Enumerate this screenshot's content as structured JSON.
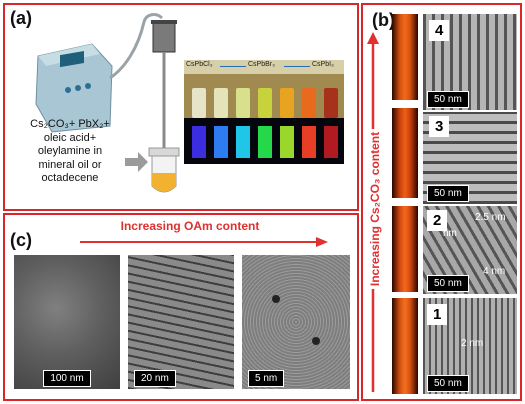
{
  "panel_a": {
    "label": "(a)",
    "formula_lines": [
      "Cs₂CO₃+ PbX₂+",
      "oleic acid+",
      "oleylamine in",
      "mineral oil or",
      "octadecene"
    ],
    "vial_labels": {
      "left": "CsPbCl₃",
      "middle": "CsPbBr₃",
      "right": "CsPbI₃"
    }
  },
  "panel_b": {
    "label": "(b)",
    "side_text": "Increasing Cs₂CO₃ content",
    "images": [
      {
        "index": "4",
        "scale": "50 nm",
        "annotations": []
      },
      {
        "index": "3",
        "scale": "50 nm",
        "annotations": []
      },
      {
        "index": "2",
        "scale": "50 nm",
        "annotations": [
          "2.5 nm",
          "4 nm",
          "nm"
        ]
      },
      {
        "index": "1",
        "scale": "50 nm",
        "annotations": [
          "2 nm"
        ]
      }
    ]
  },
  "panel_c": {
    "label": "(c)",
    "arrow_text": "Increasing OAm content",
    "images": [
      {
        "scale": "100 nm"
      },
      {
        "scale": "20 nm"
      },
      {
        "scale": "5 nm"
      }
    ]
  },
  "colors": {
    "frame": "#d9262b",
    "arrow": "#e0302f"
  }
}
